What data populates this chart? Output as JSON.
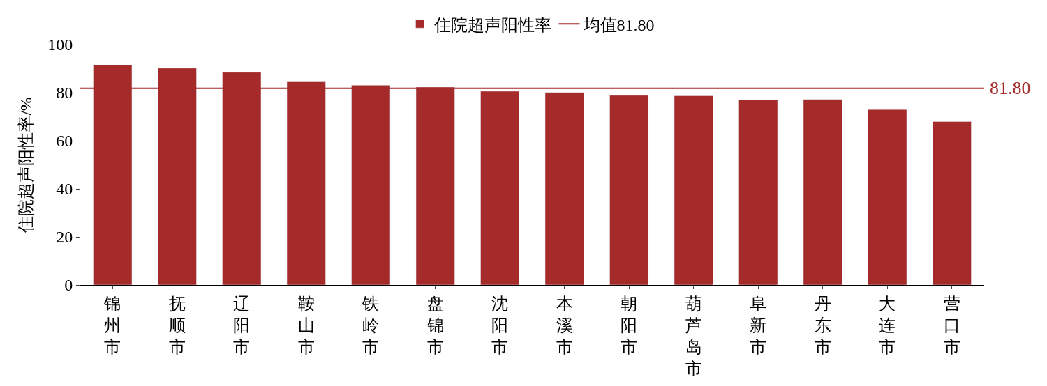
{
  "chart_data": {
    "type": "bar",
    "ylabel": "住院超声阳性率/%",
    "categories": [
      "锦州市",
      "抚顺市",
      "辽阳市",
      "鞍山市",
      "铁岭市",
      "盘锦市",
      "沈阳市",
      "本溪市",
      "朝阳市",
      "葫芦岛市",
      "阜新市",
      "丹东市",
      "大连市",
      "营口市"
    ],
    "series": [
      {
        "name": "住院超声阳性率",
        "color": "#a52a2a",
        "values": [
          91.6,
          90.2,
          88.5,
          84.8,
          83.1,
          82.3,
          80.6,
          80.1,
          78.9,
          78.7,
          77.0,
          77.2,
          73.0,
          68.0
        ]
      }
    ],
    "ylim": [
      0,
      100
    ],
    "yticks": [
      0,
      20,
      40,
      60,
      80,
      100
    ],
    "ref_lines": [
      {
        "axis": "y",
        "value": 81.8,
        "label": "均值81.80",
        "color": "#a52a2a"
      }
    ],
    "annotations": [
      "81.80"
    ],
    "legend": "top"
  }
}
